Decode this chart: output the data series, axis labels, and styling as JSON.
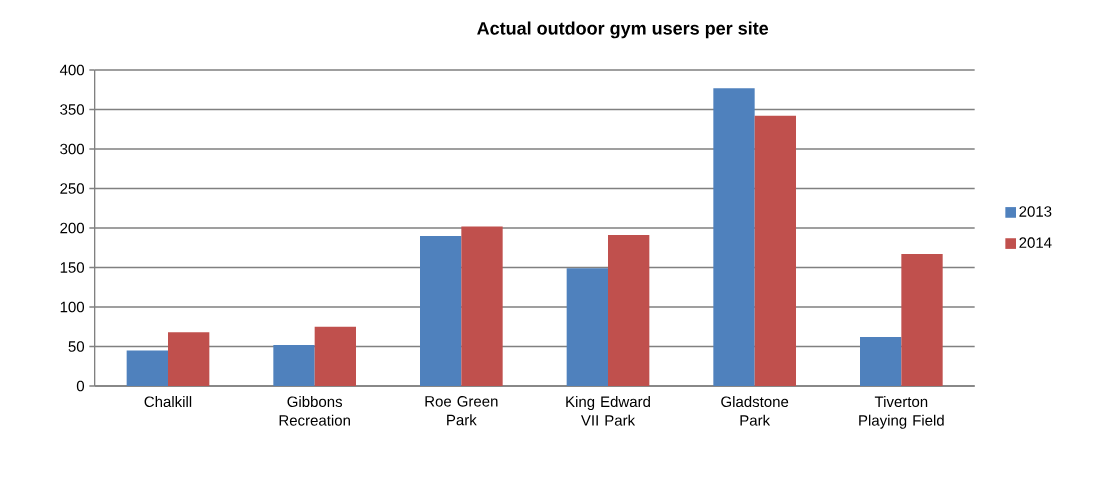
{
  "chart_data": {
    "type": "bar",
    "title": "Actual outdoor gym users per site",
    "categories": [
      "Chalkill",
      "Gibbons Recreation",
      "Roe Green Park",
      "King Edward VII Park",
      "Gladstone Park",
      "Tiverton Playing Field"
    ],
    "series": [
      {
        "name": "2013",
        "color": "#4f81bd",
        "values": [
          45,
          52,
          190,
          149,
          377,
          62
        ]
      },
      {
        "name": "2014",
        "color": "#c0504d",
        "values": [
          68,
          75,
          202,
          191,
          342,
          167
        ]
      }
    ],
    "ylim": [
      0,
      400
    ],
    "yticks": [
      0,
      50,
      100,
      150,
      200,
      250,
      300,
      350,
      400
    ],
    "grid": "y",
    "legend": "right"
  }
}
